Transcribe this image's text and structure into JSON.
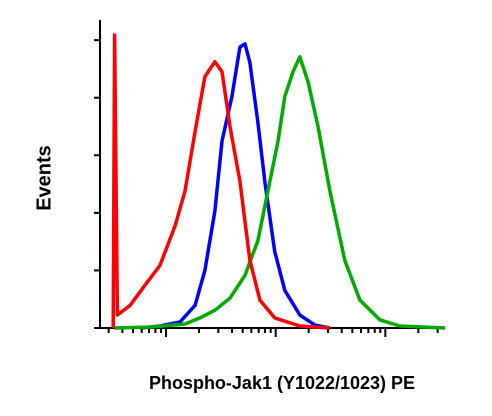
{
  "chart_data": {
    "type": "line",
    "xlabel": "Phospho-Jak1 (Y1022/1023) PE",
    "ylabel": "Events",
    "xscale": "log",
    "xlim": [
      2.5,
      3500
    ],
    "ylim": [
      0,
      107
    ],
    "xticks": [
      10,
      100,
      1000
    ],
    "xminorticks": [
      3,
      4,
      5,
      6,
      7,
      8,
      9,
      20,
      30,
      40,
      50,
      60,
      70,
      80,
      90,
      200,
      300,
      400,
      500,
      600,
      700,
      800,
      900,
      2000,
      3000
    ],
    "yticks": [
      0,
      20,
      40,
      60,
      80,
      100
    ],
    "series": [
      {
        "color": "#0000ff",
        "x": [
          5.8,
          8.8,
          13.4,
          18.4,
          22.6,
          27.9,
          32.4,
          39.9,
          47.2,
          52.5,
          58.2,
          68.9,
          79.8,
          98,
          121,
          166,
          228,
          312
        ],
        "values": [
          0,
          0.7,
          2.1,
          7.9,
          20,
          40.7,
          64.9,
          80.4,
          97.6,
          98.7,
          92.2,
          71.4,
          50.7,
          26.6,
          13.1,
          4.5,
          1.0,
          0
        ]
      },
      {
        "color": "#00aa00",
        "x": [
          3.4,
          7.1,
          14.9,
          20.4,
          27.9,
          38.3,
          52.5,
          68.9,
          84.9,
          105,
          121,
          144,
          166,
          197,
          243,
          312,
          427,
          586,
          892,
          1358,
          3500
        ],
        "values": [
          0,
          0.3,
          1.4,
          3.5,
          6.2,
          10.4,
          18.3,
          30.4,
          47.6,
          64.9,
          80.4,
          89,
          94.2,
          85.6,
          70,
          47.6,
          23.5,
          9.7,
          2.8,
          0.7,
          0
        ]
      },
      {
        "color": "#ff0000",
        "x": [
          3.3,
          3.4,
          3.6,
          4.7,
          6.4,
          8.8,
          12.1,
          14.9,
          18.4,
          22.6,
          27.9,
          32.4,
          38.3,
          47.2,
          58.2,
          71.8,
          98,
          166,
          312
        ],
        "values": [
          0,
          101.8,
          4.5,
          7.9,
          14.8,
          21.7,
          35.5,
          47.6,
          68.3,
          87.3,
          92.5,
          89,
          70,
          51,
          23.5,
          9.7,
          3.5,
          0.7,
          0
        ]
      }
    ]
  }
}
